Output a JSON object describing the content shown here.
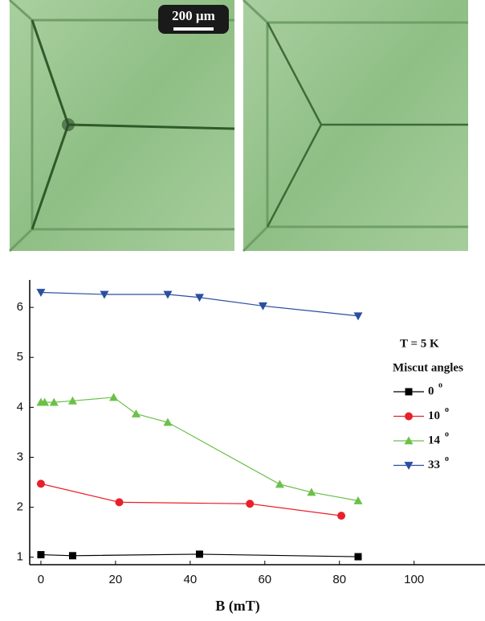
{
  "image_scale_bar": "200 µm",
  "chart_data": {
    "type": "line",
    "x_label": "B (mT)",
    "legend_title": "T = 5 K",
    "legend_subtitle": "Miscut angles",
    "degree_mark": "o",
    "xlim": [
      -3,
      119
    ],
    "ylim": [
      0.85,
      6.55
    ],
    "xticks": [
      0,
      20,
      40,
      60,
      80,
      100
    ],
    "yticks": [
      1,
      2,
      3,
      4,
      5,
      6
    ],
    "series": [
      {
        "name": "0",
        "color": "#000000",
        "marker": "square",
        "x": [
          0,
          8.5,
          42.5,
          85
        ],
        "values": [
          1.05,
          1.03,
          1.06,
          1.01
        ]
      },
      {
        "name": "10",
        "color": "#e8202a",
        "marker": "circle",
        "x": [
          0,
          21,
          56,
          80.5
        ],
        "values": [
          2.47,
          2.1,
          2.07,
          1.83
        ]
      },
      {
        "name": "14",
        "color": "#6cc04a",
        "marker": "triangle-up",
        "x": [
          0,
          1,
          3.5,
          8.5,
          19.5,
          25.5,
          34,
          64,
          72.5,
          85
        ],
        "values": [
          4.1,
          4.1,
          4.1,
          4.13,
          4.2,
          3.87,
          3.7,
          2.46,
          2.3,
          2.13
        ]
      },
      {
        "name": "33",
        "color": "#2a4fa0",
        "marker": "triangle-down",
        "x": [
          0,
          17,
          34,
          42.5,
          59.5,
          85
        ],
        "values": [
          6.3,
          6.26,
          6.26,
          6.2,
          6.03,
          5.83
        ]
      }
    ]
  }
}
